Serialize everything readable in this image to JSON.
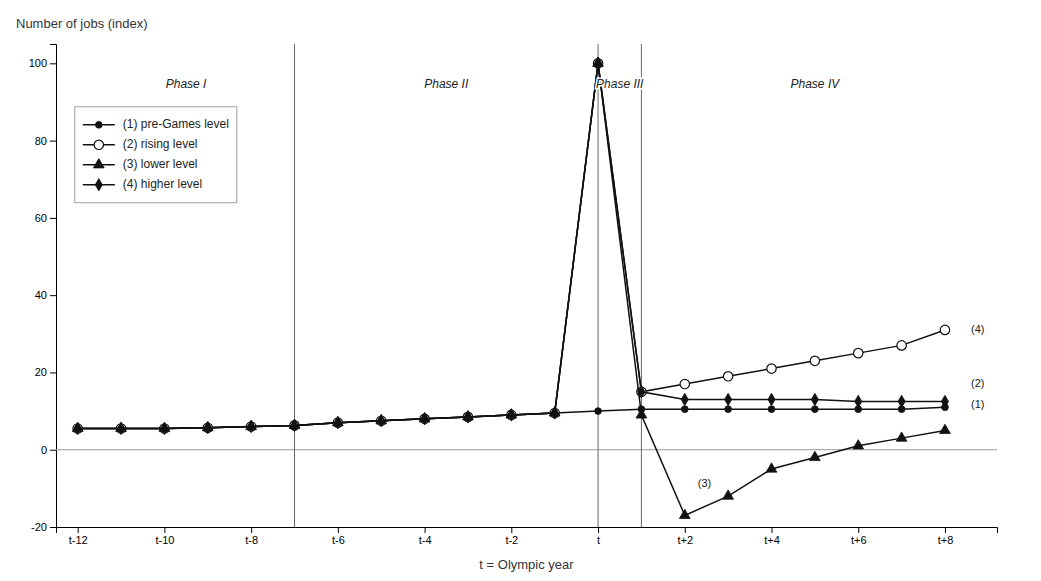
{
  "chart_data": {
    "type": "line",
    "xlabel": "t = Olympic year",
    "ylabel": "Number of jobs (index)",
    "x": [
      -12,
      -11,
      -10,
      -9,
      -8,
      -7,
      -6,
      -5,
      -4,
      -3,
      -2,
      -1,
      0,
      1,
      2,
      3,
      4,
      5,
      6,
      7,
      8
    ],
    "xlim": [
      -12.5,
      9.2
    ],
    "xticks": [
      {
        "value": -12,
        "label": "t-12"
      },
      {
        "value": -10,
        "label": "t-10"
      },
      {
        "value": -8,
        "label": "t-8"
      },
      {
        "value": -6,
        "label": "t-6"
      },
      {
        "value": -4,
        "label": "t-4"
      },
      {
        "value": -2,
        "label": "t-2"
      },
      {
        "value": 0,
        "label": "t"
      },
      {
        "value": 2,
        "label": "t+2"
      },
      {
        "value": 4,
        "label": "t+4"
      },
      {
        "value": 6,
        "label": "t+6"
      },
      {
        "value": 8,
        "label": "t+8"
      }
    ],
    "ylim": [
      -20,
      105
    ],
    "yticks": [
      -20,
      0,
      20,
      40,
      60,
      80,
      100
    ],
    "grid": false,
    "legend": "upper left",
    "series": [
      {
        "name": "(1) pre-Games level",
        "color": "#111111",
        "marker": "circle",
        "values": [
          5.5,
          5.5,
          5.5,
          5.7,
          6.0,
          6.3,
          7.0,
          7.5,
          8.0,
          8.5,
          9.0,
          9.5,
          10.0,
          10.5,
          10.5,
          10.5,
          10.5,
          10.5,
          10.5,
          10.5,
          11.0
        ]
      },
      {
        "name": "(2) rising level",
        "color": "#111111",
        "marker": "circle-open",
        "values": [
          5.5,
          5.5,
          5.5,
          5.7,
          6.0,
          6.3,
          7.0,
          7.5,
          8.0,
          8.5,
          9.0,
          9.5,
          100,
          15,
          17,
          19,
          21,
          23,
          25,
          27,
          31
        ]
      },
      {
        "name": "(3) lower level",
        "color": "#111111",
        "marker": "triangle",
        "values": [
          5.5,
          5.5,
          5.5,
          5.7,
          6.0,
          6.3,
          7.0,
          7.5,
          8.0,
          8.5,
          9.0,
          9.5,
          100,
          9,
          -17,
          -12,
          -5,
          -2,
          1,
          3,
          5
        ]
      },
      {
        "name": "(4) higher level",
        "color": "#111111",
        "marker": "diamond",
        "values": [
          5.5,
          5.5,
          5.5,
          5.7,
          6.0,
          6.3,
          7.0,
          7.5,
          8.0,
          8.5,
          9.0,
          9.5,
          100,
          15,
          13,
          13,
          13,
          13,
          12.5,
          12.5,
          12.5
        ]
      }
    ],
    "vlines": [
      -7,
      0,
      1
    ],
    "hlines": [
      0
    ],
    "phases": {
      "labels": [
        "Phase I",
        "Phase II",
        "Phase III",
        "Phase IV"
      ],
      "x": [
        -9.5,
        -3.5,
        0.5,
        5.0
      ],
      "y": 96
    },
    "annotations": [
      {
        "text": "(4)",
        "x": 8.6,
        "y": 31
      },
      {
        "text": "(2)",
        "x": 8.6,
        "y": 17
      },
      {
        "text": "(1)",
        "x": 8.6,
        "y": 11.5
      },
      {
        "text": "(3)",
        "x": 2.3,
        "y": -9
      }
    ]
  }
}
